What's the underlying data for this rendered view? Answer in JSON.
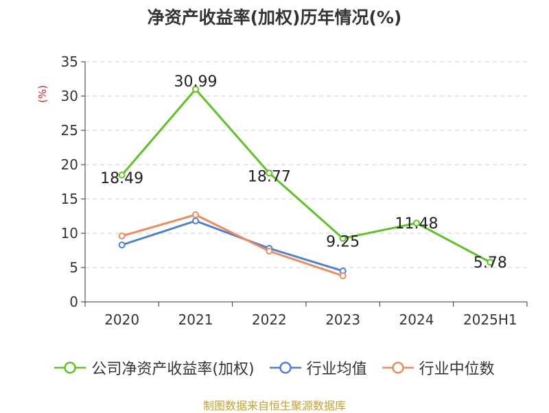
{
  "title": "净资产收益率(加权)历年情况(%)",
  "source": "制图数据来自恒生聚源数据库",
  "chart_data": {
    "type": "line",
    "title": "净资产收益率(加权)历年情况(%)",
    "ylabel": "(%)",
    "xlabel": "",
    "categories": [
      "2020",
      "2021",
      "2022",
      "2023",
      "2024",
      "2025H1"
    ],
    "ylim": [
      0,
      35
    ],
    "yticks": [
      0,
      5,
      10,
      15,
      20,
      25,
      30,
      35
    ],
    "grid": true,
    "legend_position": "bottom",
    "series": [
      {
        "name": "公司净资产收益率(加权)",
        "color": "#5cc41e",
        "values": [
          18.49,
          30.99,
          18.77,
          9.25,
          11.48,
          5.78
        ],
        "labels": [
          "18.49",
          "30.99",
          "18.77",
          "9.25",
          "11.48",
          "5.78"
        ]
      },
      {
        "name": "行业均值",
        "color": "#4a7fd8",
        "values": [
          8.3,
          11.8,
          7.8,
          4.5,
          null,
          null
        ]
      },
      {
        "name": "行业中位数",
        "color": "#f08a5a",
        "values": [
          9.6,
          12.7,
          7.4,
          3.8,
          null,
          null
        ]
      }
    ]
  }
}
